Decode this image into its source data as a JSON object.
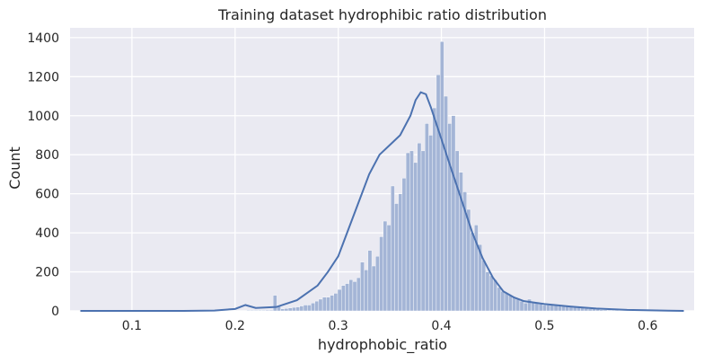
{
  "chart_data": {
    "type": "bar",
    "subtype": "histogram-with-kde",
    "title": "Training dataset hydrophibic ratio distribution",
    "xlabel": "hydrophobic_ratio",
    "ylabel": "Count",
    "xlim": [
      0.04,
      0.645
    ],
    "ylim": [
      0,
      1450
    ],
    "xticks": [
      0.1,
      0.2,
      0.3,
      0.4,
      0.5,
      0.6
    ],
    "xtick_labels": [
      "0.1",
      "0.2",
      "0.3",
      "0.4",
      "0.5",
      "0.6"
    ],
    "yticks": [
      0,
      200,
      400,
      600,
      800,
      1000,
      1200,
      1400
    ],
    "ytick_labels": [
      "0",
      "200",
      "400",
      "600",
      "800",
      "1000",
      "1200",
      "1400"
    ],
    "grid": true,
    "colors": {
      "background": "#eaeaf2",
      "bar_fill": "#a4b5d6",
      "bar_edge": "#ffffff",
      "kde_line": "#4c72b0",
      "grid": "#ffffff"
    },
    "bin_start": 0.0455,
    "bin_width": 0.00368,
    "bar_values": [
      2,
      2,
      2,
      2,
      2,
      2,
      2,
      2,
      2,
      2,
      2,
      2,
      2,
      2,
      2,
      2,
      2,
      2,
      2,
      2,
      2,
      2,
      2,
      2,
      2,
      2,
      2,
      2,
      2,
      2,
      2,
      2,
      2,
      2,
      2,
      2,
      2,
      2,
      2,
      2,
      2,
      2,
      2,
      2,
      2,
      3,
      3,
      3,
      3,
      3,
      4,
      4,
      80,
      25,
      10,
      12,
      15,
      18,
      20,
      25,
      30,
      30,
      40,
      50,
      60,
      70,
      70,
      80,
      90,
      110,
      130,
      140,
      160,
      150,
      170,
      250,
      210,
      310,
      230,
      280,
      380,
      460,
      440,
      640,
      550,
      600,
      680,
      810,
      820,
      760,
      860,
      820,
      960,
      900,
      1040,
      1210,
      1380,
      1100,
      960,
      1000,
      820,
      710,
      610,
      520,
      400,
      440,
      340,
      260,
      200,
      180,
      160,
      120,
      100,
      90,
      80,
      70,
      60,
      50,
      40,
      60,
      40,
      40,
      35,
      30,
      30,
      30,
      28,
      25,
      25,
      22,
      20,
      20,
      18,
      15,
      12,
      10,
      10,
      8,
      6,
      5,
      4,
      3,
      3,
      2,
      2,
      2,
      2,
      2,
      2,
      2,
      2,
      2,
      2,
      2,
      2,
      2,
      2,
      2,
      2,
      2
    ],
    "kde": {
      "x": [
        0.05,
        0.1,
        0.15,
        0.18,
        0.2,
        0.21,
        0.22,
        0.24,
        0.26,
        0.28,
        0.29,
        0.3,
        0.31,
        0.32,
        0.33,
        0.34,
        0.35,
        0.36,
        0.37,
        0.375,
        0.38,
        0.385,
        0.39,
        0.4,
        0.41,
        0.42,
        0.43,
        0.44,
        0.45,
        0.46,
        0.47,
        0.48,
        0.5,
        0.53,
        0.55,
        0.58,
        0.62,
        0.635
      ],
      "y": [
        0,
        0,
        0,
        2,
        10,
        30,
        15,
        20,
        55,
        130,
        200,
        280,
        420,
        560,
        700,
        800,
        850,
        900,
        1000,
        1080,
        1120,
        1110,
        1040,
        880,
        720,
        560,
        400,
        270,
        170,
        100,
        70,
        50,
        35,
        20,
        12,
        5,
        1,
        0
      ]
    }
  }
}
